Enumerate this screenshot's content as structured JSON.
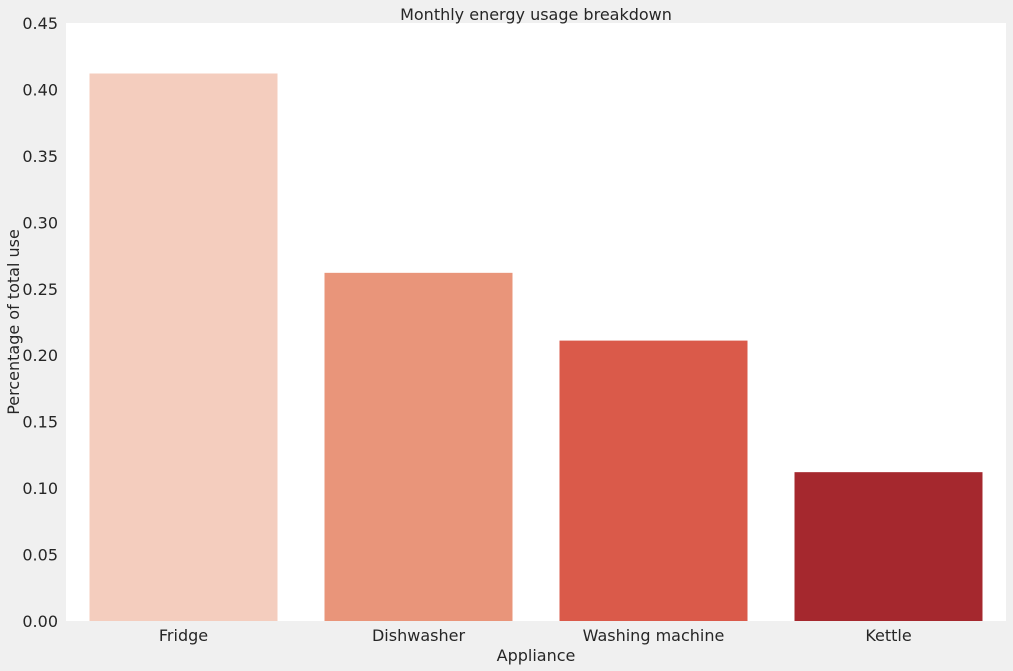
{
  "chart_data": {
    "type": "bar",
    "title": "Monthly energy usage breakdown",
    "xlabel": "Appliance",
    "ylabel": "Percentage of total use",
    "categories": [
      "Fridge",
      "Dishwasher",
      "Washing machine",
      "Kettle"
    ],
    "values": [
      0.412,
      0.262,
      0.211,
      0.112
    ],
    "colors": [
      "#f4cdbe",
      "#e9957a",
      "#da5a4a",
      "#a5282e"
    ],
    "ylim": [
      0,
      0.45
    ],
    "yticks": [
      "0.00",
      "0.05",
      "0.10",
      "0.15",
      "0.20",
      "0.25",
      "0.30",
      "0.35",
      "0.40",
      "0.45"
    ],
    "grid": false,
    "background": "#ffffff",
    "figure_background": "#f0f0f0"
  }
}
